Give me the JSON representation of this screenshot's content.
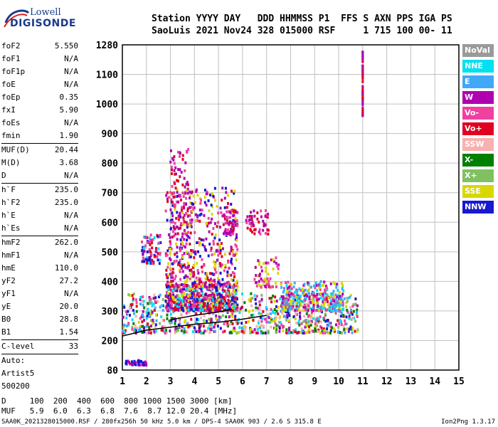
{
  "logo": {
    "line1": "Lowell",
    "line2": "DIGISONDE"
  },
  "header": {
    "line1": "Station YYYY DAY   DDD HHMMSS P1  FFS S AXN PPS IGA PS",
    "line2": "SaoLuis 2021 Nov24 328 015000 RSF     1 715 100 00- 11"
  },
  "params": [
    {
      "label": "foF2",
      "value": "5.550"
    },
    {
      "label": "foF1",
      "value": "N/A"
    },
    {
      "label": "foF1p",
      "value": "N/A"
    },
    {
      "label": "foE",
      "value": "N/A"
    },
    {
      "label": "foEp",
      "value": "0.35"
    },
    {
      "label": "fxI",
      "value": "5.90"
    },
    {
      "label": "foEs",
      "value": "N/A"
    },
    {
      "label": "fmin",
      "value": "1.90"
    },
    {
      "sep": true
    },
    {
      "label": "MUF(D)",
      "value": "20.44"
    },
    {
      "label": "M(D)",
      "value": "3.68"
    },
    {
      "label": "D",
      "value": "N/A"
    },
    {
      "sep": true
    },
    {
      "label": "h`F",
      "value": "235.0"
    },
    {
      "label": "h`F2",
      "value": "235.0"
    },
    {
      "label": "h`E",
      "value": "N/A"
    },
    {
      "label": "h`Es",
      "value": "N/A"
    },
    {
      "sep": true
    },
    {
      "label": "hmF2",
      "value": "262.0"
    },
    {
      "label": "hmF1",
      "value": "N/A"
    },
    {
      "label": "hmE",
      "value": "110.0"
    },
    {
      "label": "yF2",
      "value": "27.2"
    },
    {
      "label": "yF1",
      "value": "N/A"
    },
    {
      "label": "yE",
      "value": "20.0"
    },
    {
      "label": "B0",
      "value": "28.8"
    },
    {
      "label": "B1",
      "value": "1.54"
    },
    {
      "sep": true
    },
    {
      "label": "C-level",
      "value": "33"
    },
    {
      "sep": true
    },
    {
      "text": "Auto:"
    },
    {
      "text": "Artist5"
    },
    {
      "text": "500200"
    }
  ],
  "legend": [
    {
      "label": "NoVal",
      "color": "#9a9a9a"
    },
    {
      "label": "NNE",
      "color": "#00e0f0"
    },
    {
      "label": "E",
      "color": "#40a8f8"
    },
    {
      "label": "W",
      "color": "#b000b0"
    },
    {
      "label": "Vo-",
      "color": "#f040a0"
    },
    {
      "label": "Vo+",
      "color": "#e00020"
    },
    {
      "label": "SSW",
      "color": "#f8b0b0"
    },
    {
      "label": "X-",
      "color": "#008000"
    },
    {
      "label": "X+",
      "color": "#80c060"
    },
    {
      "label": "SSE",
      "color": "#d8d800"
    },
    {
      "label": "NNW",
      "color": "#1818d0"
    }
  ],
  "footer": {
    "d_line": "D     100  200  400  600  800 1000 1500 3000 [km]",
    "muf_line": "MUF   5.9  6.0  6.3  6.8  7.6  8.7 12.0 20.4 [MHz]",
    "file_line": "SAA0K_2021328015000.RSF / 280fx256h 50 kHz 5.0 km / DPS-4 SAA0K 903 / 2.6 S 315.8 E",
    "version": "Ion2Png 1.3.17"
  },
  "chart_data": {
    "type": "scatter",
    "title": "",
    "xlabel": "",
    "ylabel": "",
    "xlim": [
      1,
      15
    ],
    "ylim": [
      80,
      1280
    ],
    "x_ticks": [
      "1",
      "2",
      "3",
      "4",
      "5",
      "6",
      "7",
      "8",
      "9",
      "10",
      "11",
      "12",
      "13",
      "14",
      "15"
    ],
    "y_ticks": [
      "80",
      "200",
      "300",
      "400",
      "500",
      "600",
      "700",
      "800",
      "900",
      "1000",
      "1100",
      "1280"
    ],
    "y_tick_values": [
      80,
      200,
      300,
      400,
      500,
      600,
      700,
      800,
      900,
      1000,
      1100,
      1280
    ],
    "grid": true,
    "traces": [
      {
        "name": "profile",
        "color": "#000000",
        "points": [
          [
            1.0,
            215
          ],
          [
            1.5,
            225
          ],
          [
            2.0,
            235
          ],
          [
            3.0,
            245
          ],
          [
            4.0,
            255
          ],
          [
            5.0,
            262
          ],
          [
            6.0,
            272
          ],
          [
            7.0,
            285
          ]
        ]
      },
      {
        "name": "trace2",
        "color": "#000000",
        "points": [
          [
            3.0,
            270
          ],
          [
            4.0,
            285
          ],
          [
            5.0,
            297
          ],
          [
            5.55,
            305
          ]
        ]
      }
    ],
    "clusters": [
      {
        "x": [
          1.0,
          10.8
        ],
        "y": [
          225,
          360
        ],
        "n": 900,
        "colors": [
          "#f040a0",
          "#e00020",
          "#b000b0",
          "#00e0f0",
          "#40a8f8",
          "#d8d800",
          "#008000",
          "#80c060",
          "#1818d0",
          "#f8b0b0"
        ]
      },
      {
        "x": [
          2.8,
          5.8
        ],
        "y": [
          300,
          390
        ],
        "n": 600,
        "colors": [
          "#f040a0",
          "#e00020",
          "#b000b0",
          "#00e0f0",
          "#d8d800",
          "#1818d0"
        ]
      },
      {
        "x": [
          7.6,
          10.2
        ],
        "y": [
          300,
          400
        ],
        "n": 300,
        "colors": [
          "#40a8f8",
          "#b000b0",
          "#f040a0",
          "#d8d800",
          "#00e0f0"
        ]
      },
      {
        "x": [
          2.8,
          5.8
        ],
        "y": [
          380,
          720
        ],
        "n": 500,
        "colors": [
          "#b000b0",
          "#f040a0",
          "#e00020",
          "#1818d0",
          "#d8d800"
        ]
      },
      {
        "x": [
          1.8,
          2.6
        ],
        "y": [
          460,
          560
        ],
        "n": 80,
        "colors": [
          "#b000b0",
          "#f040a0",
          "#1818d0",
          "#00e0f0",
          "#e00020"
        ]
      },
      {
        "x": [
          3.0,
          3.9
        ],
        "y": [
          560,
          860
        ],
        "n": 90,
        "colors": [
          "#f040a0",
          "#b000b0",
          "#e00020"
        ]
      },
      {
        "x": [
          5.2,
          5.8
        ],
        "y": [
          560,
          640
        ],
        "n": 60,
        "colors": [
          "#e00020",
          "#f040a0",
          "#b000b0"
        ]
      },
      {
        "x": [
          6.1,
          7.1
        ],
        "y": [
          560,
          640
        ],
        "n": 50,
        "colors": [
          "#e00020",
          "#f040a0",
          "#b000b0"
        ]
      },
      {
        "x": [
          6.5,
          7.5
        ],
        "y": [
          380,
          480
        ],
        "n": 60,
        "colors": [
          "#d8d800",
          "#f040a0",
          "#b000b0"
        ]
      },
      {
        "x": [
          1.1,
          2.0
        ],
        "y": [
          100,
          120
        ],
        "n": 40,
        "colors": [
          "#1818d0",
          "#b000b0"
        ]
      },
      {
        "x": [
          11.0,
          11.0
        ],
        "y": [
          960,
          1240
        ],
        "n": 60,
        "colors": [
          "#e00020",
          "#b000b0"
        ]
      }
    ]
  }
}
